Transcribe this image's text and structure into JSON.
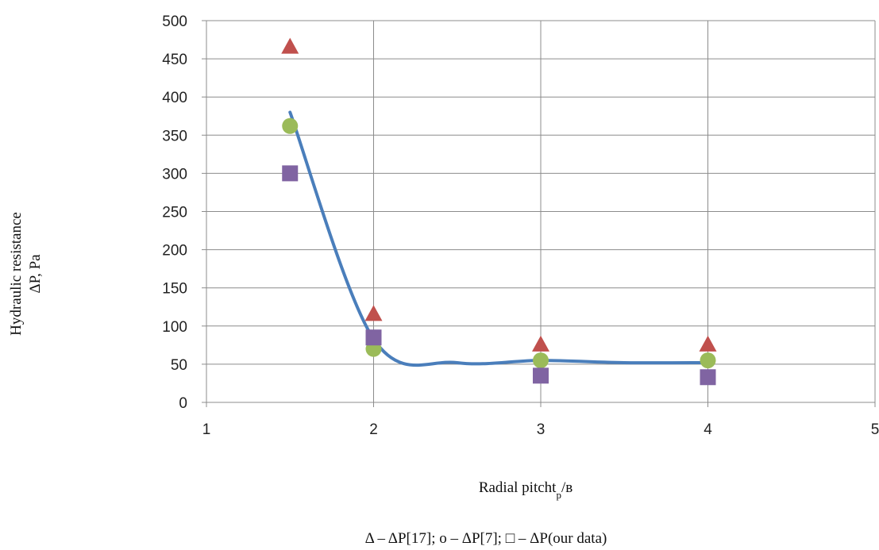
{
  "chart_data": {
    "type": "scatter",
    "title": "",
    "xlabel": "Radial pitch",
    "xlabel_sub": "t",
    "xlabel_subscript": "p",
    "xlabel_suffix": "/в",
    "ylabel_line1": "Hydraulic resistance",
    "ylabel_line2": "ΔP, Pa",
    "xlim": [
      1,
      5
    ],
    "ylim": [
      0,
      500
    ],
    "xticks": [
      "1",
      "2",
      "3",
      "4",
      "5"
    ],
    "yticks": [
      "0",
      "50",
      "100",
      "150",
      "200",
      "250",
      "300",
      "350",
      "400",
      "450",
      "500"
    ],
    "grid": true,
    "legend_text": "Δ – ΔP[17]; o – ΔP[7]; □ – ΔP(our data)",
    "legend_placement": "bottom",
    "series": [
      {
        "marker": "triangle",
        "color": "#c0504d",
        "x": [
          1.5,
          2,
          3,
          4
        ],
        "y": [
          465,
          115,
          75,
          75
        ]
      },
      {
        "marker": "circle",
        "color": "#9bbb59",
        "x": [
          1.5,
          2,
          3,
          4
        ],
        "y": [
          362,
          70,
          55,
          55
        ]
      },
      {
        "marker": "square",
        "color": "#8064a2",
        "x": [
          1.5,
          2,
          3,
          4
        ],
        "y": [
          300,
          85,
          35,
          33
        ]
      },
      {
        "marker": "line",
        "color": "#4a7ebb",
        "x": [
          1.5,
          2,
          2.5,
          3,
          3.5,
          4
        ],
        "y": [
          380,
          83,
          52,
          55,
          52,
          52
        ]
      }
    ]
  }
}
